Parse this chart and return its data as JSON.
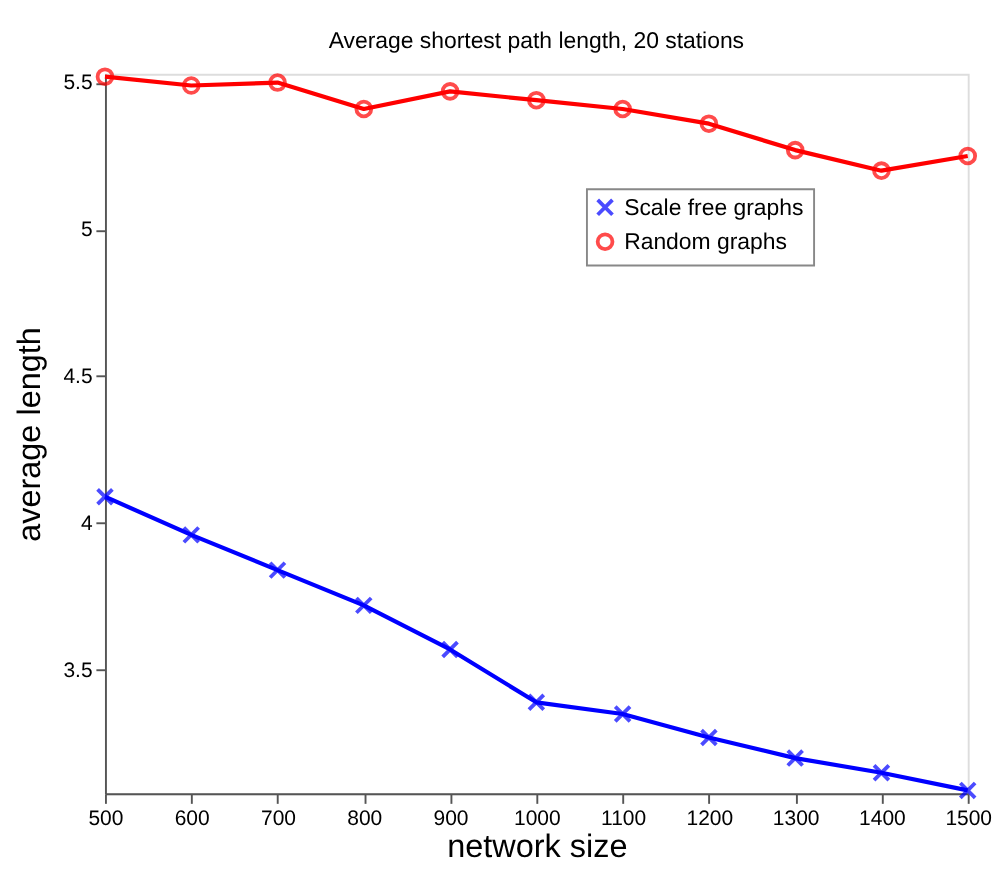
{
  "chart_data": {
    "type": "line",
    "title": "Average shortest path length, 20 stations",
    "xlabel": "network size",
    "ylabel": "average length",
    "x": [
      500,
      600,
      700,
      800,
      900,
      1000,
      1100,
      1200,
      1300,
      1400,
      1500
    ],
    "series": [
      {
        "name": "Scale free graphs",
        "color": "#0000ff",
        "marker": "cross",
        "values": [
          4.09,
          3.96,
          3.84,
          3.72,
          3.57,
          3.39,
          3.35,
          3.27,
          3.2,
          3.15,
          3.09
        ]
      },
      {
        "name": "Random graphs",
        "color": "#ff0000",
        "marker": "circle",
        "values": [
          5.52,
          5.49,
          5.5,
          5.41,
          5.47,
          5.44,
          5.41,
          5.36,
          5.27,
          5.2,
          5.25
        ]
      }
    ],
    "xlim": [
      500,
      1500
    ],
    "xticks": [
      500,
      600,
      700,
      800,
      900,
      1000,
      1100,
      1200,
      1300,
      1400,
      1500
    ],
    "ylim": [
      3.08,
      5.53
    ],
    "yticks": [
      3.5,
      4,
      4.5,
      5,
      5.5
    ],
    "grid": false,
    "legend": "top right",
    "line_style": "solid"
  }
}
